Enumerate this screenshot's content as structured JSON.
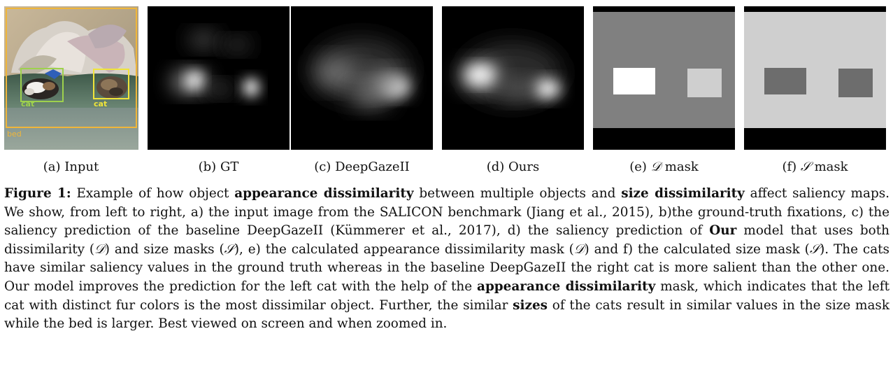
{
  "panels": {
    "input": {
      "caption_prefix": "(a)",
      "caption": "Input",
      "boxes": [
        {
          "label": "cat",
          "color": "#9ed14d"
        },
        {
          "label": "cat",
          "color": "#f0e43a"
        },
        {
          "label": "bed",
          "color": "#f0b63a"
        }
      ]
    },
    "gt": {
      "caption_prefix": "(b)",
      "caption": "GT"
    },
    "deepgaze": {
      "caption_prefix": "(c)",
      "caption": "DeepGazeII"
    },
    "ours": {
      "caption_prefix": "(d)",
      "caption": "Ours"
    },
    "d_mask": {
      "caption_prefix": "(e)",
      "symbol": "𝒟",
      "caption": "mask"
    },
    "s_mask": {
      "caption_prefix": "(f)",
      "symbol": "𝒮",
      "caption": "mask"
    }
  },
  "caption": {
    "label": "Figure 1:",
    "t1": " Example of how object ",
    "b1": "appearance dissimilarity",
    "t2": " between multiple objects and ",
    "b2": "size dissimilarity",
    "t3": " affect saliency maps. We show, from left to right, a) the input image from the SALICON benchmark (Jiang et al., 2015), b)the ground-truth fixations, c) the saliency prediction of the baseline DeepGazeII (Kümmerer et al., 2017), d) the saliency prediction of ",
    "b3": "Our",
    "t4": " model that uses both dissimilarity (",
    "s1": "𝒟",
    "t5": ") and size masks (",
    "s2": "𝒮",
    "t6": "), e) the calculated appearance dissimilarity mask (",
    "s3": "𝒟",
    "t7": ") and f) the calculated size mask (",
    "s4": "𝒮",
    "t8": ").  The cats have similar saliency values in the ground truth whereas in the baseline DeepGazeII the right cat is more salient than the other one. Our model improves the prediction for the left cat with the help of the ",
    "b4": "appearance dissimilarity",
    "t9": " mask, which indicates that the left cat with distinct fur colors is the most dissimilar object. Further, the similar ",
    "b5": "sizes",
    "t10": " of the cats result in similar values in the size mask while the bed is larger. Best viewed on screen and when zoomed in."
  }
}
